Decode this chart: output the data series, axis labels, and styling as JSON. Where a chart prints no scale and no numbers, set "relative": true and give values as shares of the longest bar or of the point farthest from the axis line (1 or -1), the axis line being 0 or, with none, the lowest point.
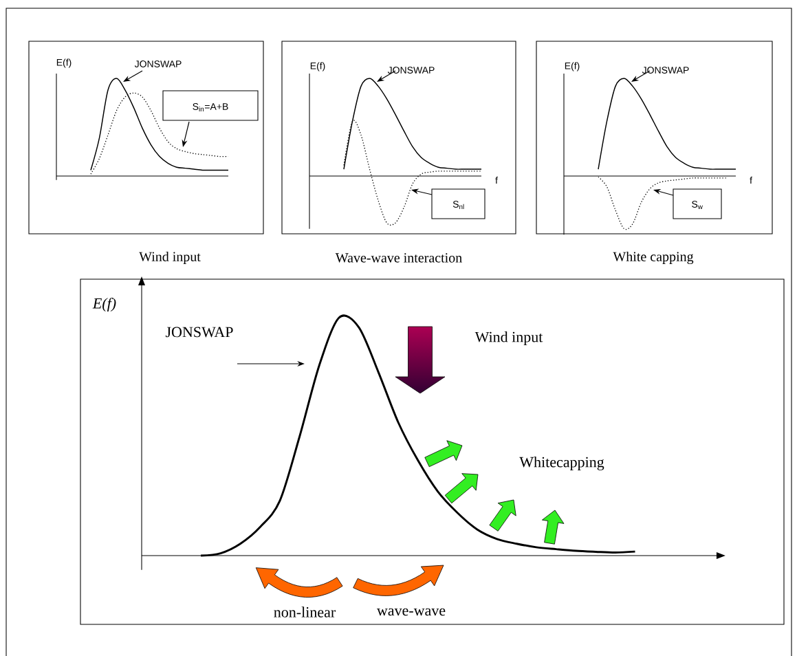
{
  "chart_data": [
    {
      "type": "line",
      "title": "Wind input",
      "ylabel": "E(f)",
      "relative": true,
      "categories": [
        null,
        null,
        null,
        null,
        null,
        null,
        null,
        null,
        null,
        null,
        null,
        null,
        null,
        null,
        null,
        null,
        null,
        null,
        null,
        null,
        null
      ],
      "series": [
        {
          "color": "#000000",
          "line_style": "solid",
          "values": [
            null,
            null,
            null,
            null,
            0.06,
            0.39,
            0.88,
            1,
            0.88,
            0.7,
            0.49,
            0.32,
            0.2,
            0.13,
            0.09,
            0.08,
            0.07,
            0.06,
            0.06,
            0.06,
            0.06
          ]
        },
        {
          "color": "#000000",
          "line_style": "dotted",
          "values": [
            null,
            null,
            null,
            null,
            0.02,
            0.18,
            0.42,
            0.67,
            0.81,
            0.85,
            0.81,
            0.67,
            0.49,
            0.35,
            0.28,
            0.25,
            0.23,
            0.22,
            0.21,
            0.2,
            0.2
          ]
        }
      ],
      "annotations": [
        "JONSWAP",
        "S$_{in}$=A+B"
      ]
    },
    {
      "type": "line",
      "title": "Wave-wave interaction",
      "ylabel": "E(f)",
      "xlabel": "f",
      "relative": true,
      "categories": [
        null,
        null,
        null,
        null,
        null,
        null,
        null,
        null,
        null,
        null,
        null,
        null,
        null,
        null,
        null,
        null,
        null,
        null,
        null,
        null,
        null
      ],
      "series": [
        {
          "color": "#000000",
          "line_style": "solid",
          "values": [
            null,
            null,
            null,
            null,
            0.07,
            0.56,
            0.92,
            1,
            0.92,
            0.79,
            0.63,
            0.46,
            0.3,
            0.19,
            0.13,
            0.09,
            0.08,
            0.07,
            0.07,
            0.07,
            0.07
          ]
        },
        {
          "color": "#000000",
          "line_style": "dotted",
          "values": [
            null,
            null,
            null,
            null,
            0.11,
            0.56,
            0.42,
            0.07,
            -0.25,
            -0.48,
            -0.48,
            -0.32,
            -0.08,
            0.02,
            0.04,
            0.05,
            0.05,
            0.05,
            0.05,
            0.05,
            0.05
          ]
        }
      ],
      "annotations": [
        "JONSWAP",
        "S$_{nl}$"
      ]
    },
    {
      "type": "line",
      "title": "White capping",
      "ylabel": "E(f)",
      "xlabel": "f",
      "relative": true,
      "categories": [
        null,
        null,
        null,
        null,
        null,
        null,
        null,
        null,
        null,
        null,
        null,
        null,
        null,
        null,
        null,
        null,
        null,
        null,
        null,
        null,
        null
      ],
      "series": [
        {
          "color": "#000000",
          "line_style": "solid",
          "values": [
            null,
            null,
            null,
            null,
            0.07,
            0.56,
            0.92,
            1,
            0.92,
            0.79,
            0.63,
            0.46,
            0.3,
            0.19,
            0.13,
            0.09,
            0.08,
            0.07,
            0.07,
            0.07,
            0.07
          ]
        },
        {
          "color": "#000000",
          "line_style": "dotted",
          "values": [
            null,
            null,
            null,
            null,
            -0.01,
            -0.11,
            -0.35,
            -0.54,
            -0.49,
            -0.27,
            -0.13,
            -0.07,
            -0.05,
            -0.04,
            -0.03,
            -0.02,
            -0.02,
            -0.02,
            -0.02,
            -0.02,
            null
          ]
        }
      ],
      "annotations": [
        "JONSWAP",
        "S$_{w}$"
      ]
    },
    {
      "type": "line",
      "ylabel": "E(f)",
      "relative": true,
      "categories": [
        null,
        null,
        null,
        null,
        null,
        null,
        null,
        null,
        null,
        null,
        null,
        null,
        null,
        null,
        null,
        null,
        null,
        null,
        null,
        null,
        null,
        null,
        null,
        null,
        null,
        null,
        null,
        null,
        null,
        null
      ],
      "series": [
        {
          "color": "#000000",
          "line_style": "solid",
          "values": [
            null,
            null,
            null,
            0,
            0.01,
            0.05,
            0.12,
            0.23,
            0.5,
            0.8,
            1,
            0.96,
            0.77,
            0.56,
            0.4,
            0.27,
            0.18,
            0.11,
            0.07,
            0.05,
            0.035,
            0.027,
            0.02,
            0.016,
            0.013,
            0.017,
            null,
            null,
            null,
            null
          ]
        }
      ],
      "annotations": [
        "JONSWAP",
        "Wind input",
        "Whitecapping",
        "non-linear",
        "wave-wave"
      ]
    }
  ]
}
